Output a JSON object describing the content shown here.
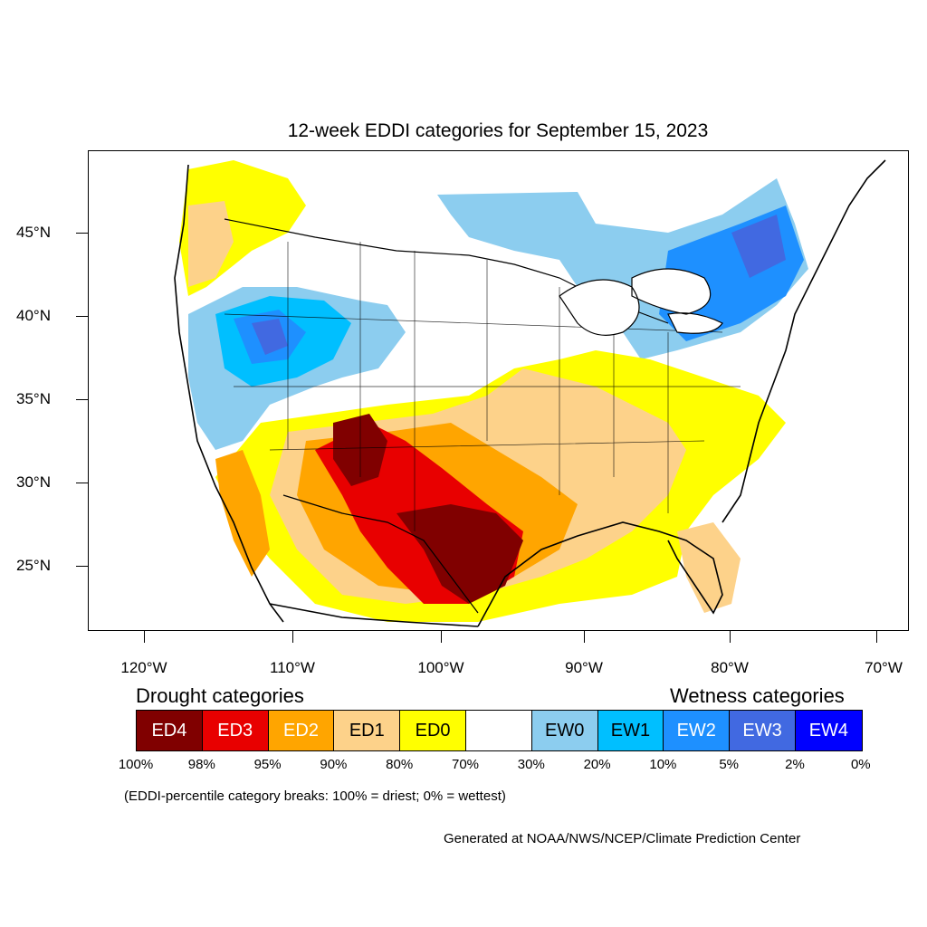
{
  "title": "12-week EDDI categories for September 15, 2023",
  "axes": {
    "lat_labels": [
      "45°N",
      "40°N",
      "35°N",
      "30°N",
      "25°N"
    ],
    "lon_labels": [
      "120°W",
      "110°W",
      "100°W",
      "90°W",
      "80°W",
      "70°W"
    ]
  },
  "legend": {
    "drought_heading": "Drought categories",
    "wetness_heading": "Wetness categories",
    "categories": [
      {
        "label": "ED4",
        "color": "#800000",
        "text_color": "#ffffff"
      },
      {
        "label": "ED3",
        "color": "#e80000",
        "text_color": "#ffffff"
      },
      {
        "label": "ED2",
        "color": "#ffa500",
        "text_color": "#ffffff"
      },
      {
        "label": "ED1",
        "color": "#fdd28a",
        "text_color": "#000000"
      },
      {
        "label": "ED0",
        "color": "#ffff00",
        "text_color": "#000000"
      },
      {
        "label": "",
        "color": "#ffffff",
        "text_color": "#000000"
      },
      {
        "label": "EW0",
        "color": "#8ccdef",
        "text_color": "#000000"
      },
      {
        "label": "EW1",
        "color": "#00bfff",
        "text_color": "#000000"
      },
      {
        "label": "EW2",
        "color": "#1e90ff",
        "text_color": "#ffffff"
      },
      {
        "label": "EW3",
        "color": "#4169e1",
        "text_color": "#ffffff"
      },
      {
        "label": "EW4",
        "color": "#0000ff",
        "text_color": "#ffffff"
      }
    ],
    "percentiles": [
      "100%",
      "98%",
      "95%",
      "90%",
      "80%",
      "70%",
      "30%",
      "20%",
      "10%",
      "5%",
      "2%",
      "0%"
    ]
  },
  "note": "(EDDI-percentile category breaks: 100% = driest; 0% = wettest)",
  "credit": "Generated at NOAA/NWS/NCEP/Climate Prediction Center"
}
